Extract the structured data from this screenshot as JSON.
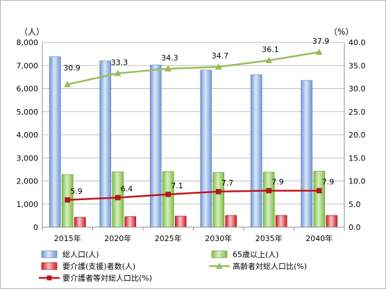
{
  "chart_data": {
    "type": "bar",
    "categories": [
      "2015年",
      "2020年",
      "2025年",
      "2030年",
      "2035年",
      "2040年"
    ],
    "y_left_unit": "（人）",
    "y_right_unit": "（%）",
    "y_left_ticks": [
      "0",
      "1,000",
      "2,000",
      "3,000",
      "4,000",
      "5,000",
      "6,000",
      "7,000",
      "8,000"
    ],
    "y_right_ticks": [
      "0.0",
      "5.0",
      "10.0",
      "15.0",
      "20.0",
      "25.0",
      "30.0",
      "35.0",
      "40.0"
    ],
    "ylim": [
      0,
      8000
    ],
    "y2lim": [
      0,
      40
    ],
    "grid": true,
    "legend_position": "bottom",
    "series": [
      {
        "name": "総人口(人)",
        "type": "bar",
        "axis": "left",
        "color": "#7ea7dc",
        "values": [
          7380,
          7200,
          7020,
          6800,
          6600,
          6350
        ]
      },
      {
        "name": "65歳以上(人)",
        "type": "bar",
        "axis": "left",
        "color": "#8fc956",
        "values": [
          2280,
          2400,
          2410,
          2370,
          2380,
          2430
        ]
      },
      {
        "name": "要介護(支援)者数(人)",
        "type": "bar",
        "axis": "left",
        "color": "#e0202a",
        "values": [
          430,
          460,
          480,
          510,
          510,
          510
        ]
      },
      {
        "name": "高齢者対総人口比(%)",
        "type": "line",
        "axis": "right",
        "color": "#9bbb59",
        "marker": "triangle",
        "values": [
          30.9,
          33.3,
          34.3,
          34.7,
          36.1,
          37.9
        ],
        "labels": [
          "30.9",
          "33.3",
          "34.3",
          "34.7",
          "36.1",
          "37.9"
        ]
      },
      {
        "name": "要介護者等対総人口比(%)",
        "type": "line",
        "axis": "right",
        "color": "#c0141e",
        "marker": "square",
        "values": [
          5.9,
          6.4,
          7.1,
          7.7,
          7.9,
          7.9
        ],
        "labels": [
          "5.9",
          "6.4",
          "7.1",
          "7.7",
          "7.9",
          "7.9"
        ]
      }
    ]
  }
}
